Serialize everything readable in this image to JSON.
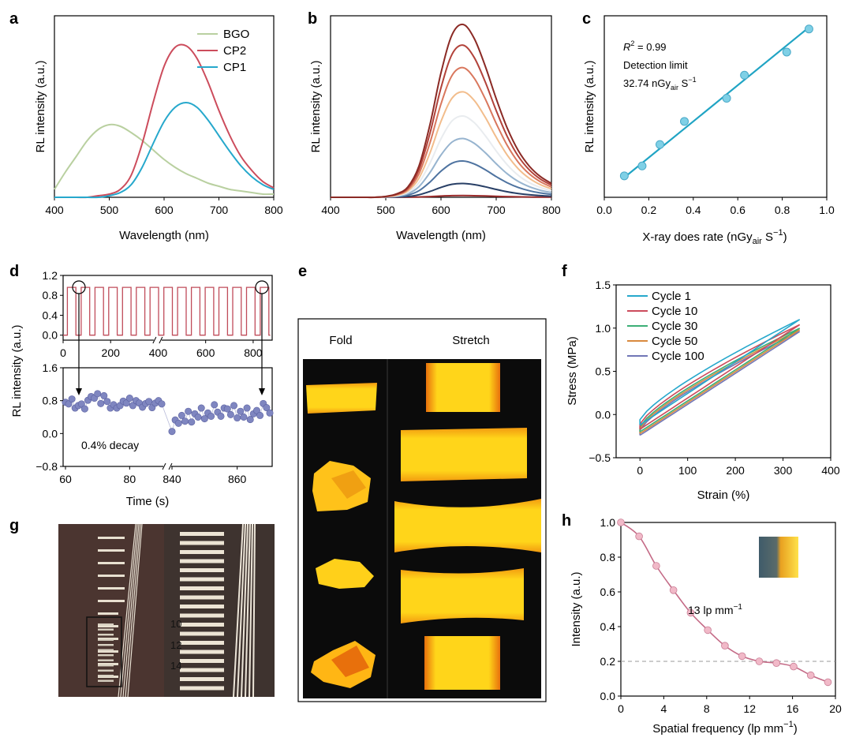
{
  "panels": {
    "a": {
      "label": "a",
      "chart_data": {
        "type": "line",
        "xlabel": "Wavelength (nm)",
        "ylabel": "RL intensity (a.u.)",
        "xlim": [
          400,
          800
        ],
        "ylim": [
          0,
          1.15
        ],
        "xticks": [
          "400",
          "500",
          "600",
          "700",
          "800"
        ],
        "legend_position": "top-right",
        "series": [
          {
            "name": "BGO",
            "color": "#b9d0a0",
            "x": [
              400,
              420,
              440,
              460,
              480,
              500,
              520,
              540,
              560,
              580,
              600,
              620,
              640,
              660,
              680,
              700,
              720,
              740,
              760,
              780,
              800
            ],
            "values": [
              0.05,
              0.16,
              0.26,
              0.36,
              0.43,
              0.46,
              0.45,
              0.41,
              0.36,
              0.3,
              0.24,
              0.19,
              0.15,
              0.12,
              0.09,
              0.07,
              0.05,
              0.04,
              0.03,
              0.02,
              0.02
            ]
          },
          {
            "name": "CP2",
            "color": "#cc4c5c",
            "x": [
              400,
              420,
              440,
              460,
              480,
              500,
              520,
              540,
              560,
              580,
              600,
              620,
              640,
              660,
              680,
              700,
              720,
              740,
              760,
              780,
              800
            ],
            "values": [
              0,
              0,
              0,
              0,
              0.01,
              0.02,
              0.05,
              0.14,
              0.34,
              0.6,
              0.83,
              0.95,
              0.96,
              0.88,
              0.73,
              0.55,
              0.39,
              0.26,
              0.17,
              0.1,
              0.06
            ]
          },
          {
            "name": "CP1",
            "color": "#26a8cc",
            "x": [
              400,
              420,
              440,
              460,
              480,
              500,
              520,
              540,
              560,
              580,
              600,
              620,
              640,
              660,
              680,
              700,
              720,
              740,
              760,
              780,
              800
            ],
            "values": [
              0,
              0,
              0,
              0,
              0,
              0.01,
              0.03,
              0.08,
              0.19,
              0.34,
              0.48,
              0.57,
              0.6,
              0.57,
              0.49,
              0.39,
              0.29,
              0.2,
              0.13,
              0.08,
              0.05
            ]
          }
        ]
      }
    },
    "b": {
      "label": "b",
      "chart_data": {
        "type": "line",
        "xlabel": "Wavelength (nm)",
        "ylabel": "RL intensity (a.u.)",
        "xlim": [
          400,
          800
        ],
        "ylim": [
          0,
          1.05
        ],
        "xticks": [
          "400",
          "500",
          "600",
          "700",
          "800"
        ],
        "shape_x": [
          400,
          420,
          440,
          460,
          480,
          500,
          520,
          540,
          560,
          580,
          600,
          620,
          640,
          660,
          680,
          700,
          720,
          740,
          760,
          780,
          800
        ],
        "shape": [
          0,
          0,
          0,
          0,
          0,
          0.005,
          0.02,
          0.06,
          0.18,
          0.42,
          0.72,
          0.94,
          1.0,
          0.92,
          0.76,
          0.57,
          0.4,
          0.27,
          0.18,
          0.12,
          0.08
        ],
        "series": [
          {
            "peak": 1.0,
            "color": "#8b2a25"
          },
          {
            "peak": 0.88,
            "color": "#b2423a"
          },
          {
            "peak": 0.75,
            "color": "#d9775d"
          },
          {
            "peak": 0.61,
            "color": "#f2bd8c"
          },
          {
            "peak": 0.47,
            "color": "#e9ecef"
          },
          {
            "peak": 0.34,
            "color": "#97b4cf"
          },
          {
            "peak": 0.21,
            "color": "#4e73a0"
          },
          {
            "peak": 0.08,
            "color": "#283f66"
          },
          {
            "peak": 0.01,
            "color": "#9b2c2c"
          }
        ]
      }
    },
    "c": {
      "label": "c",
      "annotation": {
        "r2_symbol": "R",
        "r2_exp": "2",
        "r2_value": " = 0.99",
        "line2": "Detection limit",
        "line3_value": "32.74 nGy",
        "line3_sub": "air",
        "line3_unit": " S",
        "line3_exp": "−1"
      },
      "chart_data": {
        "type": "scatter",
        "xlabel_main": "X-ray does rate (nGy",
        "xlabel_sub": "air",
        "xlabel_tail": " S",
        "xlabel_exp": "−1",
        "xlabel_close": ")",
        "ylabel": "RL intensity (a.u.)",
        "xlim": [
          0.0,
          1.0
        ],
        "ylim": [
          0,
          1.1
        ],
        "xticks": [
          "0.0",
          "0.2",
          "0.4",
          "0.6",
          "0.8",
          "1.0"
        ],
        "x": [
          0.09,
          0.17,
          0.25,
          0.36,
          0.55,
          0.63,
          0.82,
          0.92
        ],
        "values": [
          0.13,
          0.19,
          0.32,
          0.46,
          0.6,
          0.74,
          0.88,
          1.02
        ],
        "fit": {
          "x": [
            0.09,
            0.92
          ],
          "y": [
            0.12,
            1.03
          ]
        },
        "color": "#20a4c4"
      }
    },
    "d": {
      "label": "d",
      "ylabel": "RL intensity (a.u.)",
      "xlabel": "Time (s)",
      "annotation": "0.4% decay",
      "top_chart": {
        "type": "line",
        "xlim": [
          0,
          880
        ],
        "ylim": [
          -0.1,
          1.2
        ],
        "yticks": [
          "0.0",
          "0.4",
          "0.8",
          "1.2"
        ],
        "xticks": [
          "0",
          "200",
          "400",
          "600",
          "800"
        ],
        "high": 0.96,
        "low": 0.0,
        "period_s": 58,
        "color": "#c04c5a"
      },
      "bottom_chart": {
        "type": "scatter",
        "ylim": [
          -0.8,
          1.6
        ],
        "yticks": [
          "−0.8",
          "0.0",
          "0.8",
          "1.6"
        ],
        "xticks_left": [
          "60",
          "80"
        ],
        "xticks_right": [
          "840",
          "860"
        ],
        "segment_left": {
          "x": [
            60,
            61,
            62,
            63,
            64,
            65,
            66,
            67,
            68,
            69,
            70,
            71,
            72,
            73,
            74,
            75,
            76,
            77,
            78,
            79,
            80,
            81,
            82,
            83,
            84,
            85,
            86,
            87,
            88,
            89,
            90
          ],
          "values": [
            0.76,
            0.72,
            0.84,
            0.62,
            0.68,
            0.72,
            0.6,
            0.81,
            0.9,
            0.86,
            0.97,
            0.73,
            0.92,
            0.78,
            0.62,
            0.7,
            0.62,
            0.68,
            0.79,
            0.74,
            0.86,
            0.68,
            0.8,
            0.74,
            0.64,
            0.73,
            0.78,
            0.63,
            0.74,
            0.8,
            0.72
          ]
        },
        "segment_right": {
          "x": [
            840,
            841,
            842,
            843,
            844,
            845,
            846,
            847,
            848,
            849,
            850,
            851,
            852,
            853,
            854,
            855,
            856,
            857,
            858,
            859,
            860,
            861,
            862,
            863,
            864,
            865,
            866,
            867,
            868,
            869,
            870
          ],
          "values": [
            0.05,
            0.33,
            0.25,
            0.44,
            0.3,
            0.54,
            0.28,
            0.48,
            0.4,
            0.62,
            0.36,
            0.5,
            0.42,
            0.7,
            0.52,
            0.42,
            0.62,
            0.6,
            0.46,
            0.68,
            0.38,
            0.54,
            0.4,
            0.62,
            0.34,
            0.48,
            0.56,
            0.44,
            0.73,
            0.63,
            0.5
          ]
        },
        "color": "#7f86c0"
      }
    },
    "e": {
      "label": "e",
      "col_fold": "Fold",
      "col_stretch": "Stretch"
    },
    "f": {
      "label": "f",
      "chart_data": {
        "type": "line",
        "xlabel": "Strain (%)",
        "ylabel": "Stress (MPa)",
        "xlim": [
          -50,
          400
        ],
        "ylim": [
          -0.5,
          1.5
        ],
        "xticks": [
          "0",
          "100",
          "200",
          "300",
          "400"
        ],
        "yticks": [
          "−0.5",
          "0.0",
          "0.5",
          "1.0",
          "1.5"
        ],
        "legend_position": "top-left",
        "series": [
          {
            "name": "Cycle 1",
            "color": "#26a8cc",
            "start": -0.12,
            "end": 1.1
          },
          {
            "name": "Cycle 10",
            "color": "#cc4c5c",
            "start": -0.17,
            "end": 1.04
          },
          {
            "name": "Cycle 30",
            "color": "#3caf76",
            "start": -0.2,
            "end": 1.0
          },
          {
            "name": "Cycle 50",
            "color": "#d98a3e",
            "start": -0.22,
            "end": 0.98
          },
          {
            "name": "Cycle 100",
            "color": "#7176b6",
            "start": -0.24,
            "end": 0.96
          }
        ]
      }
    },
    "g": {
      "label": "g",
      "markers": [
        "10",
        "12",
        "14"
      ]
    },
    "h": {
      "label": "h",
      "annotation_main": "13 lp mm",
      "annotation_exp": "−1",
      "chart_data": {
        "type": "line",
        "xlabel_main": "Spatial frequency (lp mm",
        "xlabel_exp": "−1",
        "xlabel_close": ")",
        "ylabel": "Intensity (a.u.)",
        "xlim": [
          0,
          20
        ],
        "ylim": [
          0,
          1.0
        ],
        "xticks": [
          "0",
          "4",
          "8",
          "12",
          "16",
          "20"
        ],
        "yticks": [
          "0.0",
          "0.2",
          "0.4",
          "0.6",
          "0.8",
          "1.0"
        ],
        "x": [
          0,
          1.7,
          3.3,
          4.9,
          6.5,
          8.1,
          9.7,
          11.3,
          12.9,
          14.5,
          16.1,
          17.7,
          19.3
        ],
        "values": [
          1.0,
          0.92,
          0.75,
          0.61,
          0.48,
          0.38,
          0.29,
          0.23,
          0.2,
          0.19,
          0.17,
          0.12,
          0.08
        ],
        "reference_line": 0.2,
        "color": "#c46a86"
      }
    }
  }
}
